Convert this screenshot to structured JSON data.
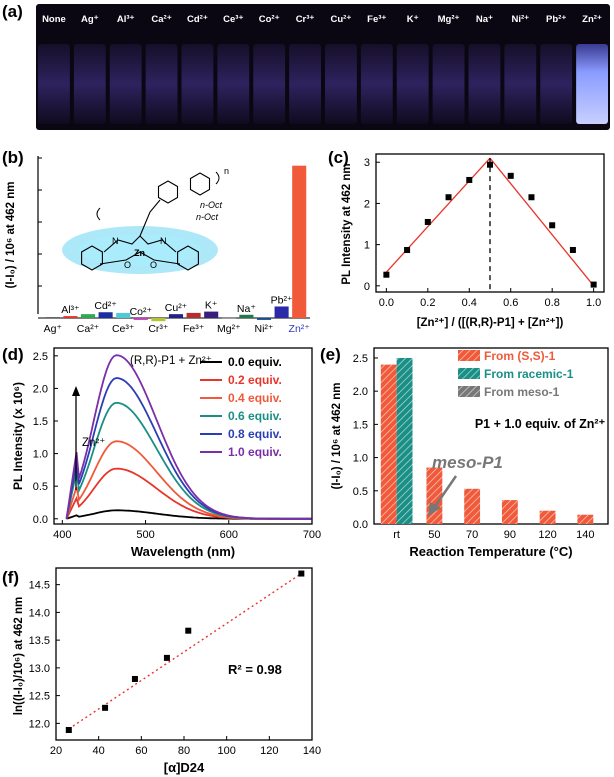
{
  "panels": {
    "a": "(a)",
    "b": "(b)",
    "c": "(c)",
    "d": "(d)",
    "e": "(e)",
    "f": "(f)"
  },
  "photo": {
    "labels": [
      "None",
      "Ag⁺",
      "Al³⁺",
      "Ca²⁺",
      "Cd²⁺",
      "Ce³⁺",
      "Co²⁺",
      "Cr³⁺",
      "Cu²⁺",
      "Fe³⁺",
      "K⁺",
      "Mg²⁺",
      "Na⁺",
      "Ni²⁺",
      "Pb²⁺",
      "Zn²⁺"
    ],
    "glow_index": 15,
    "colors": {
      "background": "#0a0612",
      "vial": "#3a2c78",
      "glow": "#8a9bff"
    }
  },
  "chart_data": [
    {
      "panel": "b",
      "type": "bar",
      "ylabel": "(I-I₀) / 10⁶ at 462 nm",
      "ylim": [
        0,
        2.5
      ],
      "categories": [
        "Ag⁺",
        "Al³⁺",
        "Ca²⁺",
        "Cd²⁺",
        "Ce³⁺",
        "Co²⁺",
        "Cr³⁺",
        "Cu²⁺",
        "Fe³⁺",
        "K⁺",
        "Mg²⁺",
        "Na⁺",
        "Ni²⁺",
        "Pb²⁺",
        "Zn²⁺"
      ],
      "values": [
        0.01,
        0.03,
        0.06,
        0.09,
        0.08,
        -0.03,
        -0.05,
        0.06,
        0.08,
        0.1,
        0.01,
        0.05,
        -0.03,
        0.18,
        2.38
      ],
      "colors": [
        "#111111",
        "#e8352b",
        "#2fa84f",
        "#1c2fa0",
        "#53c7d6",
        "#c040b8",
        "#b7c237",
        "#222288",
        "#b23030",
        "#3a1f7a",
        "#555555",
        "#1e7a4a",
        "#174e8c",
        "#2a2aa8",
        "#f05a3a"
      ],
      "label_position": [
        "bottom",
        "top",
        "bottom",
        "top",
        "bottom",
        "top",
        "bottom",
        "top",
        "bottom",
        "top",
        "bottom",
        "top",
        "bottom",
        "top",
        "bottom"
      ],
      "highlight_label_color": "#2a3fb5"
    },
    {
      "panel": "c",
      "type": "scatter",
      "xlabel": "[Zn²⁺] / ([(R,R)-P1] + [Zn²⁺])",
      "ylabel": "PL Intensity at 462 nm",
      "xlim": [
        -0.05,
        1.05
      ],
      "ylim": [
        -0.15,
        3.2
      ],
      "xticks": [
        "0.0",
        "0.2",
        "0.4",
        "0.6",
        "0.8",
        "1.0"
      ],
      "yticks": [
        "0",
        "1",
        "2",
        "3"
      ],
      "x": [
        0.0,
        0.1,
        0.2,
        0.3,
        0.4,
        0.5,
        0.6,
        0.7,
        0.8,
        0.9,
        1.0
      ],
      "y": [
        0.27,
        0.87,
        1.55,
        2.15,
        2.57,
        2.94,
        2.67,
        2.15,
        1.47,
        0.87,
        0.03
      ],
      "fit_lines": [
        [
          [
            0.0,
            0.33
          ],
          [
            0.5,
            3.1
          ]
        ],
        [
          [
            0.5,
            3.1
          ],
          [
            1.0,
            0.0
          ]
        ]
      ],
      "dashed_x": 0.5,
      "line_color": "#e8352b"
    },
    {
      "panel": "d",
      "type": "line",
      "xlabel": "Wavelength (nm)",
      "ylabel": "PL Intensity (x 10⁶)",
      "xlim": [
        390,
        700
      ],
      "ylim": [
        -0.08,
        2.62
      ],
      "xticks": [
        400,
        500,
        600,
        700
      ],
      "yticks": [
        "0.0",
        "0.5",
        "1.0",
        "1.5",
        "2.0",
        "2.5"
      ],
      "annotation": "(R,R)-P1 + Zn²⁺",
      "arrow_label": "Zn²⁺",
      "peak_x": 465,
      "series": [
        {
          "name": "0.0 equiv.",
          "peak": 0.13,
          "color": "#000000"
        },
        {
          "name": "0.2 equiv.",
          "peak": 0.77,
          "color": "#e8352b"
        },
        {
          "name": "0.4 equiv.",
          "peak": 1.19,
          "color": "#f05a3a"
        },
        {
          "name": "0.6 equiv.",
          "peak": 1.78,
          "color": "#1a8f85"
        },
        {
          "name": "0.8 equiv.",
          "peak": 2.16,
          "color": "#2a3fb5"
        },
        {
          "name": "1.0 equiv.",
          "peak": 2.51,
          "color": "#7a2fa8"
        }
      ]
    },
    {
      "panel": "e",
      "type": "bar",
      "xlabel": "Reaction Temperature (°C)",
      "ylabel": "(I-I₀) / 10⁶ at 462 nm",
      "ylim": [
        0,
        2.65
      ],
      "categories": [
        "rt",
        "50",
        "70",
        "90",
        "120",
        "140"
      ],
      "yticks": [
        "0.0",
        "0.5",
        "1.0",
        "1.5",
        "2.0",
        "2.5"
      ],
      "series": [
        {
          "name": "From (S,S)-1",
          "values": [
            2.4,
            0.85,
            0.53,
            0.36,
            0.2,
            0.14
          ],
          "color": "#f05a3a"
        },
        {
          "name": "From racemic-1",
          "values": [
            2.5,
            null,
            null,
            null,
            null,
            null
          ],
          "color": "#1a8f85"
        },
        {
          "name": "From meso-1",
          "values": [
            null,
            null,
            null,
            null,
            null,
            null
          ],
          "color": "#777777"
        }
      ],
      "annotation": "P1 + 1.0 equiv. of Zn²⁺",
      "arrow_label": "meso-P1"
    },
    {
      "panel": "f",
      "type": "scatter",
      "xlabel": "[α]D24",
      "ylabel": "ln((I-I₀)/10⁶) at 462 nm",
      "xlim": [
        20,
        140
      ],
      "ylim": [
        11.7,
        14.8
      ],
      "xticks": [
        "20",
        "40",
        "60",
        "80",
        "100",
        "120",
        "140"
      ],
      "yticks": [
        "12.0",
        "12.5",
        "13.0",
        "13.5",
        "14.0",
        "14.5"
      ],
      "x": [
        26,
        43,
        57,
        72,
        82,
        135
      ],
      "y": [
        11.88,
        12.28,
        12.8,
        13.18,
        13.67,
        14.7
      ],
      "fit": [
        [
          26,
          11.9
        ],
        [
          135,
          14.7
        ]
      ],
      "r2": "R² = 0.98",
      "line_color": "#e8352b"
    }
  ],
  "molecule": {
    "labels": [
      "n",
      "n-Oct",
      "n-Oct",
      "N",
      "N",
      "O",
      "O",
      "Zn"
    ]
  }
}
